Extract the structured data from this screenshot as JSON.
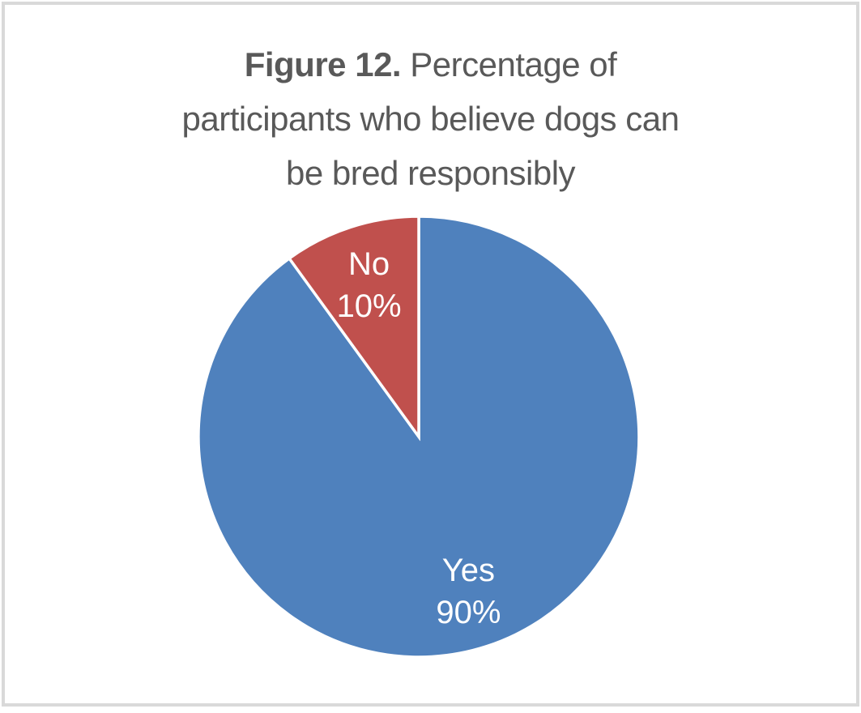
{
  "frame": {
    "border_color": "#D9D9D9",
    "background": "#FFFFFF"
  },
  "title": {
    "line1_bold": "Figure 12.",
    "line1_rest": " Percentage of",
    "line2": "participants who believe dogs can",
    "line3": "be bred responsibly",
    "color": "#595959"
  },
  "chart_data": {
    "type": "pie",
    "title": "Figure 12. Percentage of participants who believe dogs can be bred responsibly",
    "categories": [
      "Yes",
      "No"
    ],
    "values": [
      90,
      10
    ],
    "unit": "%",
    "start_angle_deg": 0,
    "direction": "clockwise",
    "legend": "none",
    "separator_color": "#FFFFFF",
    "data_label_color": "#FFFFFF",
    "slices": [
      {
        "label": "Yes",
        "value": 90,
        "pct_label": "90%",
        "color": "#4F81BD"
      },
      {
        "label": "No",
        "value": 10,
        "pct_label": "10%",
        "color": "#C0504D"
      }
    ]
  }
}
